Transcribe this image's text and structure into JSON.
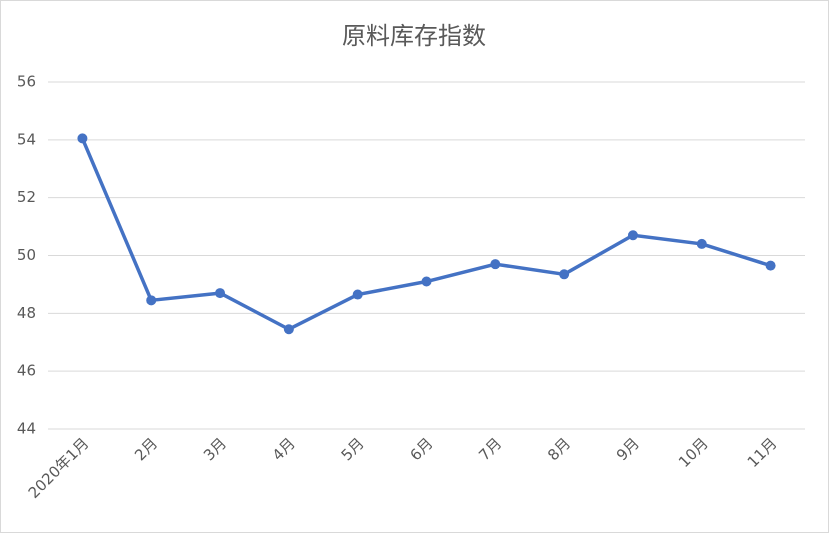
{
  "chart_data": {
    "type": "line",
    "title": "原料库存指数",
    "categories": [
      "2020年1月",
      "2月",
      "3月",
      "4月",
      "5月",
      "6月",
      "7月",
      "8月",
      "9月",
      "10月",
      "11月"
    ],
    "series": [
      {
        "name": "原料库存指数",
        "color": "#4472c4",
        "values": [
          54.05,
          48.45,
          48.7,
          47.45,
          48.65,
          49.1,
          49.7,
          49.35,
          50.7,
          50.4,
          49.65
        ]
      }
    ],
    "ylim": [
      44,
      56
    ],
    "yticks": [
      44,
      46,
      48,
      50,
      52,
      54,
      56
    ],
    "grid": true
  }
}
